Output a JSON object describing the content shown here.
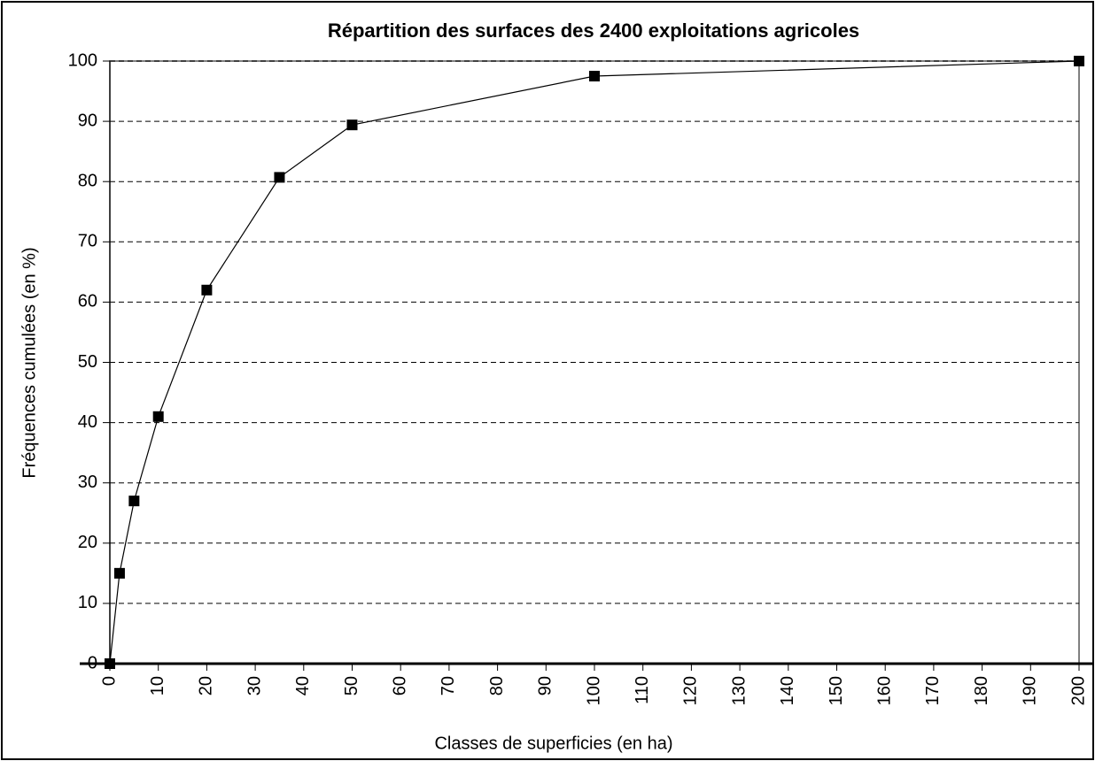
{
  "chart_data": {
    "type": "line",
    "title": "Répartition des surfaces des 2400 exploitations agricoles",
    "x_label": "Classes de superficies (en ha)",
    "y_label": "Fréquences cumulées  (en %)",
    "series": [
      {
        "name": "Fréquences cumulées",
        "color": "#000000",
        "x": [
          0,
          2,
          5,
          10,
          20,
          35,
          50,
          100,
          200
        ],
        "values": [
          0,
          15,
          27,
          41,
          62,
          80.7,
          89.4,
          97.5,
          100
        ]
      }
    ],
    "xlim": [
      0,
      200
    ],
    "xticks": [
      0,
      10,
      20,
      30,
      40,
      50,
      60,
      70,
      80,
      90,
      100,
      110,
      120,
      130,
      140,
      150,
      160,
      170,
      180,
      190,
      200
    ],
    "ylim": [
      0,
      100
    ],
    "yticks": [
      0,
      10,
      20,
      30,
      40,
      50,
      60,
      70,
      80,
      90,
      100
    ],
    "grid": true
  }
}
